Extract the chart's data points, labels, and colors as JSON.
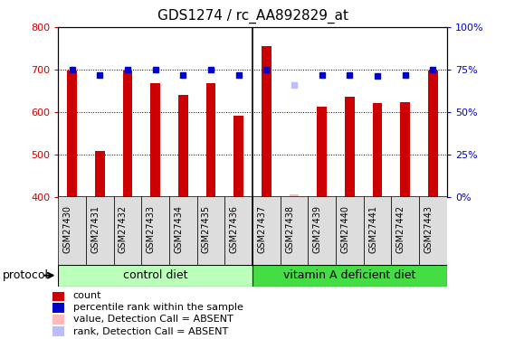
{
  "title": "GDS1274 / rc_AA892829_at",
  "samples": [
    "GSM27430",
    "GSM27431",
    "GSM27432",
    "GSM27433",
    "GSM27434",
    "GSM27435",
    "GSM27436",
    "GSM27437",
    "GSM27438",
    "GSM27439",
    "GSM27440",
    "GSM27441",
    "GSM27442",
    "GSM27443"
  ],
  "bar_values": [
    697,
    507,
    697,
    668,
    640,
    668,
    592,
    756,
    405,
    613,
    635,
    621,
    622,
    697
  ],
  "rank_values": [
    75,
    72,
    75,
    75,
    72,
    75,
    72,
    75,
    null,
    72,
    72,
    71,
    72,
    75
  ],
  "absent_bar_idx": 8,
  "absent_rank_idx": 8,
  "absent_rank_val": 66,
  "ylim_left": [
    400,
    800
  ],
  "ylim_right": [
    0,
    100
  ],
  "yticks_left": [
    400,
    500,
    600,
    700,
    800
  ],
  "yticks_right": [
    0,
    25,
    50,
    75,
    100
  ],
  "ytick_right_labels": [
    "0%",
    "25%",
    "50%",
    "75%",
    "100%"
  ],
  "bar_color": "#cc0000",
  "rank_color": "#0000cc",
  "absent_bar_color": "#ffbbbb",
  "absent_rank_color": "#bbbbff",
  "grid_color": "#000000",
  "n_control": 7,
  "n_vitamin": 7,
  "control_color": "#bbffbb",
  "vitamin_color": "#44dd44",
  "control_label": "control diet",
  "vitamin_label": "vitamin A deficient diet",
  "protocol_label": "protocol",
  "legend_items": [
    {
      "label": "count",
      "color": "#cc0000"
    },
    {
      "label": "percentile rank within the sample",
      "color": "#0000cc"
    },
    {
      "label": "value, Detection Call = ABSENT",
      "color": "#ffbbbb"
    },
    {
      "label": "rank, Detection Call = ABSENT",
      "color": "#bbbbff"
    }
  ],
  "bar_width": 0.35,
  "title_fontsize": 11,
  "axis_fontsize": 8,
  "label_fontsize": 9,
  "legend_fontsize": 8
}
